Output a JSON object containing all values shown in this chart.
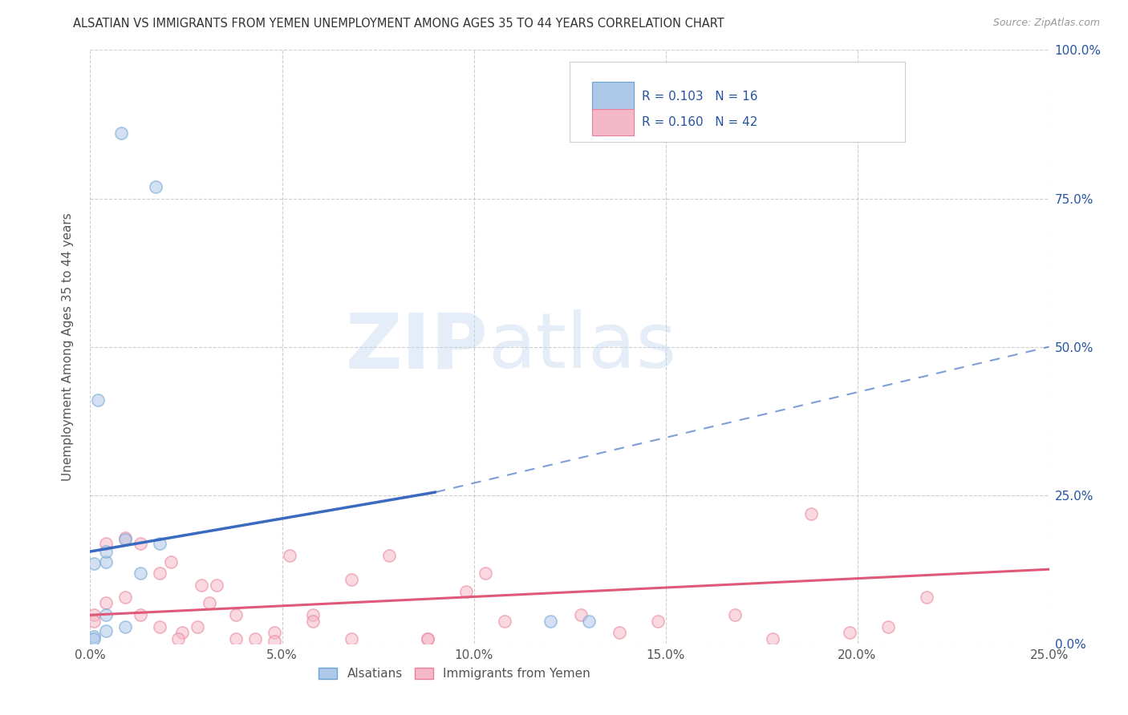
{
  "title": "ALSATIAN VS IMMIGRANTS FROM YEMEN UNEMPLOYMENT AMONG AGES 35 TO 44 YEARS CORRELATION CHART",
  "source": "Source: ZipAtlas.com",
  "ylabel": "Unemployment Among Ages 35 to 44 years",
  "xlim": [
    0.0,
    0.25
  ],
  "ylim": [
    0.0,
    1.0
  ],
  "xticks": [
    0.0,
    0.05,
    0.1,
    0.15,
    0.2,
    0.25
  ],
  "xticklabels": [
    "0.0%",
    "5.0%",
    "10.0%",
    "15.0%",
    "20.0%",
    "25.0%"
  ],
  "yticks": [
    0.0,
    0.25,
    0.5,
    0.75,
    1.0
  ],
  "yticklabels_right": [
    "0.0%",
    "25.0%",
    "50.0%",
    "75.0%",
    "100.0%"
  ],
  "blue_color": "#adc8e8",
  "blue_edge_color": "#6aa3d5",
  "pink_color": "#f5b8c8",
  "pink_edge_color": "#e8809a",
  "blue_line_color": "#3a6abf",
  "pink_line_color": "#e05878",
  "legend_text_color": "#2554a0",
  "R_blue": 0.103,
  "N_blue": 16,
  "R_pink": 0.16,
  "N_pink": 42,
  "blue_line_x0": 0.0,
  "blue_line_y0": 0.155,
  "blue_line_x1": 0.09,
  "blue_line_y1": 0.255,
  "blue_line_x2": 0.25,
  "blue_line_y2": 0.5,
  "pink_line_x0": 0.0,
  "pink_line_y0": 0.048,
  "pink_line_x1": 0.25,
  "pink_line_y1": 0.125,
  "blue_scatter_x": [
    0.008,
    0.017,
    0.002,
    0.009,
    0.004,
    0.013,
    0.018,
    0.004,
    0.009,
    0.001,
    0.004,
    0.001,
    0.12,
    0.13,
    0.004,
    0.001
  ],
  "blue_scatter_y": [
    0.86,
    0.77,
    0.41,
    0.175,
    0.138,
    0.118,
    0.168,
    0.048,
    0.028,
    0.012,
    0.022,
    0.008,
    0.038,
    0.038,
    0.155,
    0.135
  ],
  "pink_scatter_x": [
    0.001,
    0.004,
    0.009,
    0.013,
    0.018,
    0.021,
    0.024,
    0.029,
    0.033,
    0.038,
    0.043,
    0.048,
    0.052,
    0.058,
    0.068,
    0.078,
    0.088,
    0.098,
    0.103,
    0.108,
    0.128,
    0.138,
    0.148,
    0.168,
    0.188,
    0.198,
    0.208,
    0.001,
    0.004,
    0.009,
    0.013,
    0.018,
    0.023,
    0.028,
    0.031,
    0.038,
    0.048,
    0.058,
    0.068,
    0.088,
    0.178,
    0.218
  ],
  "pink_scatter_y": [
    0.048,
    0.168,
    0.178,
    0.168,
    0.118,
    0.138,
    0.018,
    0.098,
    0.098,
    0.048,
    0.008,
    0.018,
    0.148,
    0.048,
    0.108,
    0.148,
    0.008,
    0.088,
    0.118,
    0.038,
    0.048,
    0.018,
    0.038,
    0.048,
    0.218,
    0.018,
    0.028,
    0.038,
    0.068,
    0.078,
    0.048,
    0.028,
    0.008,
    0.028,
    0.068,
    0.008,
    0.004,
    0.038,
    0.008,
    0.008,
    0.008,
    0.078
  ],
  "marker_size": 120,
  "marker_alpha": 0.55,
  "marker_lw": 1.2
}
